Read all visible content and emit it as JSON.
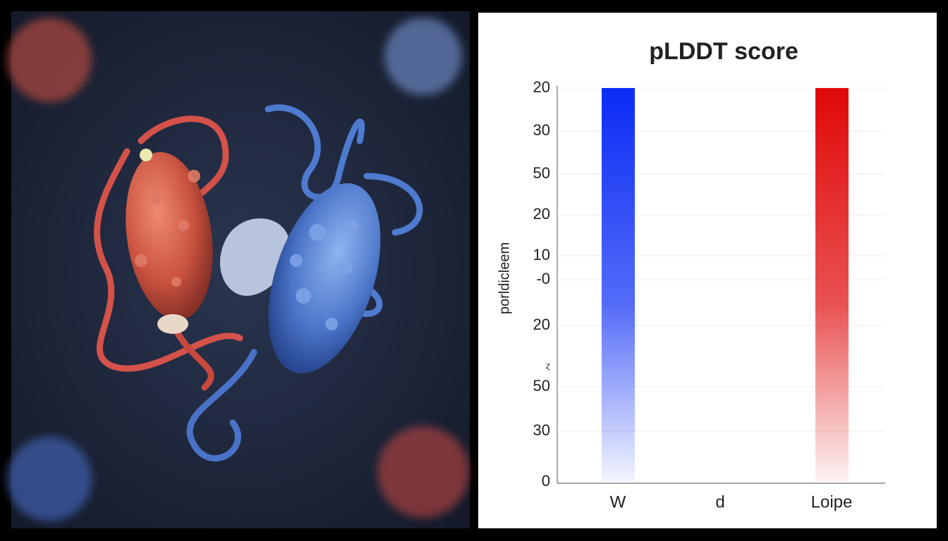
{
  "chart": {
    "title": "pLDDT score",
    "y_axis_label": "porldicleem",
    "y_labels": [
      "20",
      "30",
      "50",
      "20",
      "10",
      "-0",
      "20",
      "ɀ",
      "50",
      "30",
      "0"
    ],
    "categories": [
      "W",
      "d",
      "Loipe"
    ],
    "bar_colors": [
      "#0a2cf5",
      null,
      "#e00808"
    ]
  }
}
